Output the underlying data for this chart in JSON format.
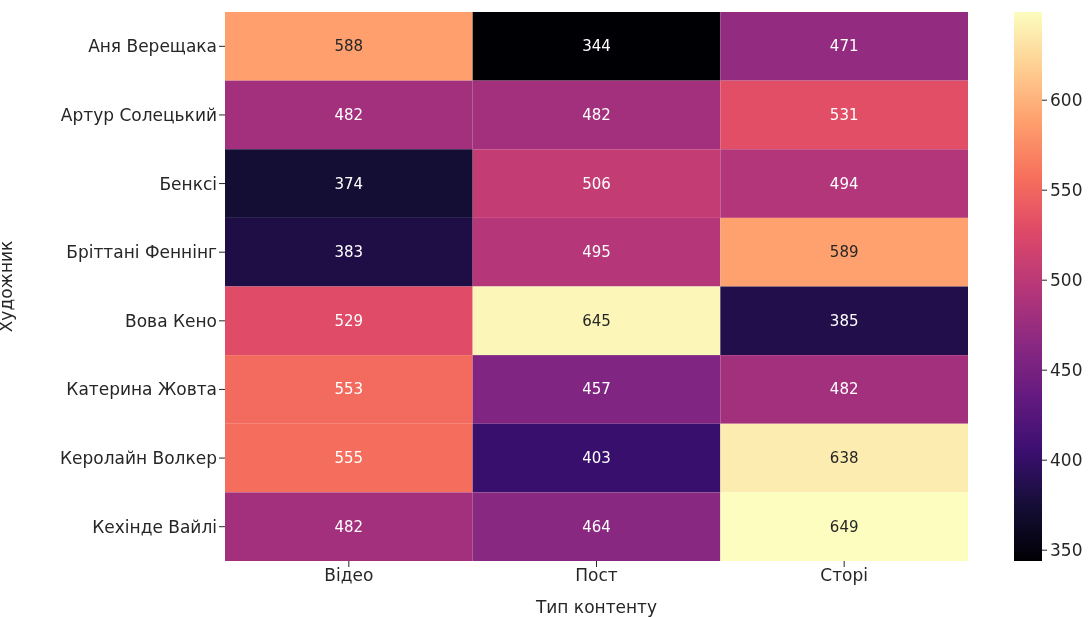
{
  "chart_data": {
    "type": "heatmap",
    "xlabel": "Тип контенту",
    "ylabel": "Художник",
    "categories": [
      "Відео",
      "Пост",
      "Сторі"
    ],
    "y_categories": [
      "Аня Верещака",
      "Артур Солецький",
      "Бенксі",
      "Бріттані Феннінг",
      "Вова Кено",
      "Катерина Жовта",
      "Керолайн Волкер",
      "Кехінде Вайлі"
    ],
    "cells": [
      [
        588,
        344,
        471
      ],
      [
        482,
        482,
        531
      ],
      [
        374,
        506,
        494
      ],
      [
        383,
        495,
        589
      ],
      [
        529,
        645,
        385
      ],
      [
        553,
        457,
        482
      ],
      [
        555,
        403,
        638
      ],
      [
        482,
        464,
        649
      ]
    ],
    "data_labels": true,
    "clim": [
      344,
      649
    ],
    "cticks": [
      350,
      400,
      450,
      500,
      550,
      600
    ]
  }
}
